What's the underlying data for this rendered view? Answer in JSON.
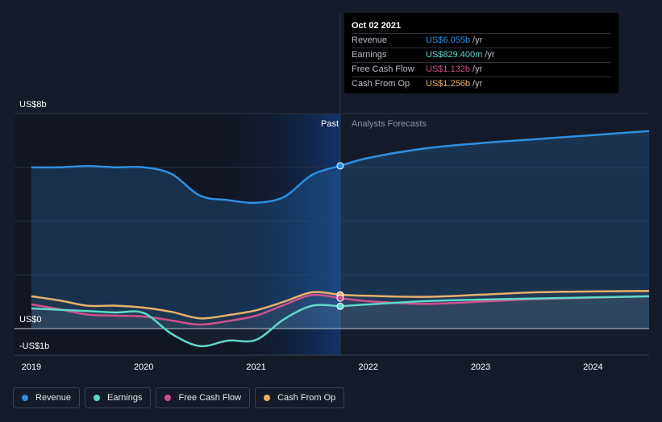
{
  "chart_data": {
    "type": "line",
    "y_axis": {
      "top_label": "US$8b",
      "zero_label": "US$0",
      "bottom_label": "-US$1b",
      "ylim": [
        -1,
        8
      ],
      "unit": "US$ billions"
    },
    "x_ticks": [
      "2019",
      "2020",
      "2021",
      "2022",
      "2023",
      "2024"
    ],
    "xlim": [
      2018.85,
      2024.5
    ],
    "forecast_start": 2021.75,
    "highlight_start": 2020.75,
    "zone_labels": {
      "past": "Past",
      "forecast": "Analysts Forecasts"
    },
    "series": [
      {
        "name": "Revenue",
        "color": "#2e8fe0",
        "area": true,
        "points": [
          [
            2019.0,
            6.0
          ],
          [
            2019.25,
            6.0
          ],
          [
            2019.5,
            6.05
          ],
          [
            2019.75,
            6.0
          ],
          [
            2020.0,
            6.0
          ],
          [
            2020.25,
            5.75
          ],
          [
            2020.5,
            4.95
          ],
          [
            2020.75,
            4.78
          ],
          [
            2021.0,
            4.68
          ],
          [
            2021.25,
            4.9
          ],
          [
            2021.5,
            5.72
          ],
          [
            2021.75,
            6.055
          ]
        ],
        "forecast": [
          [
            2021.75,
            6.055
          ],
          [
            2022.0,
            6.35
          ],
          [
            2022.5,
            6.7
          ],
          [
            2023.0,
            6.9
          ],
          [
            2023.5,
            7.05
          ],
          [
            2024.0,
            7.2
          ],
          [
            2024.5,
            7.35
          ]
        ]
      },
      {
        "name": "Earnings",
        "color": "#5ed8c8",
        "points": [
          [
            2019.0,
            0.75
          ],
          [
            2019.25,
            0.7
          ],
          [
            2019.5,
            0.65
          ],
          [
            2019.75,
            0.6
          ],
          [
            2020.0,
            0.58
          ],
          [
            2020.25,
            -0.2
          ],
          [
            2020.5,
            -0.65
          ],
          [
            2020.75,
            -0.45
          ],
          [
            2021.0,
            -0.42
          ],
          [
            2021.25,
            0.35
          ],
          [
            2021.5,
            0.85
          ],
          [
            2021.75,
            0.829
          ]
        ],
        "forecast": [
          [
            2021.75,
            0.829
          ],
          [
            2022.0,
            0.9
          ],
          [
            2022.5,
            1.02
          ],
          [
            2023.0,
            1.08
          ],
          [
            2023.5,
            1.12
          ],
          [
            2024.0,
            1.16
          ],
          [
            2024.5,
            1.2
          ]
        ]
      },
      {
        "name": "Free Cash Flow",
        "color": "#d0508e",
        "points": [
          [
            2019.0,
            0.9
          ],
          [
            2019.25,
            0.72
          ],
          [
            2019.5,
            0.52
          ],
          [
            2019.75,
            0.48
          ],
          [
            2020.0,
            0.45
          ],
          [
            2020.25,
            0.3
          ],
          [
            2020.5,
            0.15
          ],
          [
            2020.75,
            0.28
          ],
          [
            2021.0,
            0.48
          ],
          [
            2021.25,
            0.88
          ],
          [
            2021.5,
            1.25
          ],
          [
            2021.75,
            1.132
          ]
        ],
        "forecast": [
          [
            2021.75,
            1.132
          ],
          [
            2022.0,
            1.02
          ],
          [
            2022.5,
            0.92
          ],
          [
            2023.0,
            1.0
          ],
          [
            2023.5,
            1.1
          ],
          [
            2024.0,
            1.15
          ],
          [
            2024.5,
            1.2
          ]
        ]
      },
      {
        "name": "Cash From Op",
        "color": "#e8b06a",
        "points": [
          [
            2019.0,
            1.2
          ],
          [
            2019.25,
            1.05
          ],
          [
            2019.5,
            0.85
          ],
          [
            2019.75,
            0.85
          ],
          [
            2020.0,
            0.78
          ],
          [
            2020.25,
            0.62
          ],
          [
            2020.5,
            0.38
          ],
          [
            2020.75,
            0.5
          ],
          [
            2021.0,
            0.68
          ],
          [
            2021.25,
            1.0
          ],
          [
            2021.5,
            1.35
          ],
          [
            2021.75,
            1.256
          ]
        ],
        "forecast": [
          [
            2021.75,
            1.256
          ],
          [
            2022.0,
            1.22
          ],
          [
            2022.5,
            1.18
          ],
          [
            2023.0,
            1.26
          ],
          [
            2023.5,
            1.35
          ],
          [
            2024.0,
            1.38
          ],
          [
            2024.5,
            1.4
          ]
        ]
      }
    ]
  },
  "tooltip": {
    "date": "Oct 02 2021",
    "rows": [
      {
        "name": "Revenue",
        "value": "US$6.055b",
        "unit": "/yr",
        "color": "#2e8fe0"
      },
      {
        "name": "Earnings",
        "value": "US$829.400m",
        "unit": "/yr",
        "color": "#5ed8c8"
      },
      {
        "name": "Free Cash Flow",
        "value": "US$1.132b",
        "unit": "/yr",
        "color": "#d0508e"
      },
      {
        "name": "Cash From Op",
        "value": "US$1.256b",
        "unit": "/yr",
        "color": "#e8b06a"
      }
    ]
  },
  "legend": [
    {
      "label": "Revenue",
      "color": "#2e8fe0"
    },
    {
      "label": "Earnings",
      "color": "#5ed8c8"
    },
    {
      "label": "Free Cash Flow",
      "color": "#d0508e"
    },
    {
      "label": "Cash From Op",
      "color": "#e8b06a"
    }
  ]
}
